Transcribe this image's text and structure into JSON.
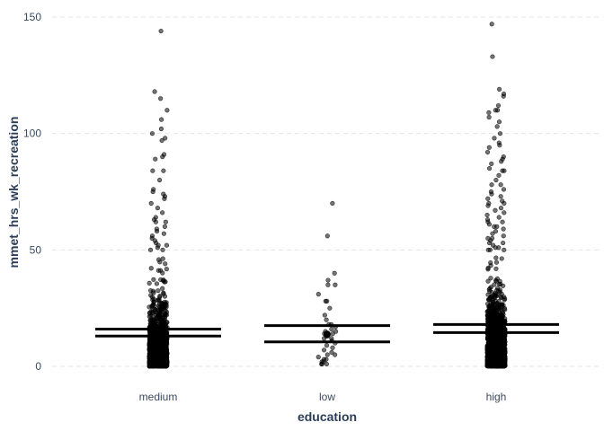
{
  "chart_data": {
    "type": "scatter",
    "subtype": "jitter-strip-with-interval",
    "xlabel": "education",
    "ylabel": "mmet_hrs_wk_recreation",
    "categories": [
      "medium",
      "low",
      "high"
    ],
    "ylim": [
      -4,
      150
    ],
    "yticks": [
      0,
      50,
      100,
      150
    ],
    "grid": true,
    "legend": "none",
    "colors": {
      "points": "#000000",
      "grid": "#e6e6e6",
      "text": "#3b4a5f",
      "title": "#2c3e57"
    },
    "groups": [
      {
        "category": "medium",
        "n_points": 1500,
        "interval": [
          13,
          16
        ],
        "mean": 14.5,
        "outliers": [
          144,
          118,
          115,
          110,
          106,
          102,
          100,
          98,
          97,
          91,
          90,
          89,
          84,
          84,
          80,
          76,
          75,
          74,
          73,
          72,
          70,
          68,
          66,
          64,
          63,
          62,
          62,
          60,
          59,
          58,
          57,
          56,
          55,
          54,
          53,
          52,
          52,
          51,
          50
        ]
      },
      {
        "category": "low",
        "n_points": 40,
        "interval": [
          10.5,
          17.5
        ],
        "mean": 13.8,
        "outliers": [
          70,
          56,
          40,
          37,
          35,
          35,
          31,
          28,
          28,
          25,
          22,
          20,
          18,
          18,
          17,
          16,
          15,
          15,
          14,
          14,
          13,
          13,
          12,
          12,
          11,
          10,
          9,
          8,
          7,
          6,
          5,
          5,
          4,
          3,
          3,
          2,
          2,
          1,
          1,
          1
        ]
      },
      {
        "category": "high",
        "n_points": 2200,
        "interval": [
          14.5,
          18
        ],
        "mean": 16.2,
        "outliers": [
          147,
          133,
          119,
          117,
          116,
          112,
          110,
          110,
          109,
          107,
          105,
          103,
          100,
          98,
          96,
          95,
          94,
          92,
          90,
          89,
          88,
          87,
          85,
          84,
          84,
          82,
          80,
          78,
          78,
          76,
          75,
          74,
          73,
          72,
          71,
          70,
          70,
          69,
          68,
          67,
          66,
          65,
          64,
          63,
          62,
          62,
          61,
          60,
          60,
          59,
          58,
          57,
          56,
          55,
          55,
          54,
          53,
          53,
          52,
          51,
          51,
          50,
          50
        ]
      }
    ]
  }
}
